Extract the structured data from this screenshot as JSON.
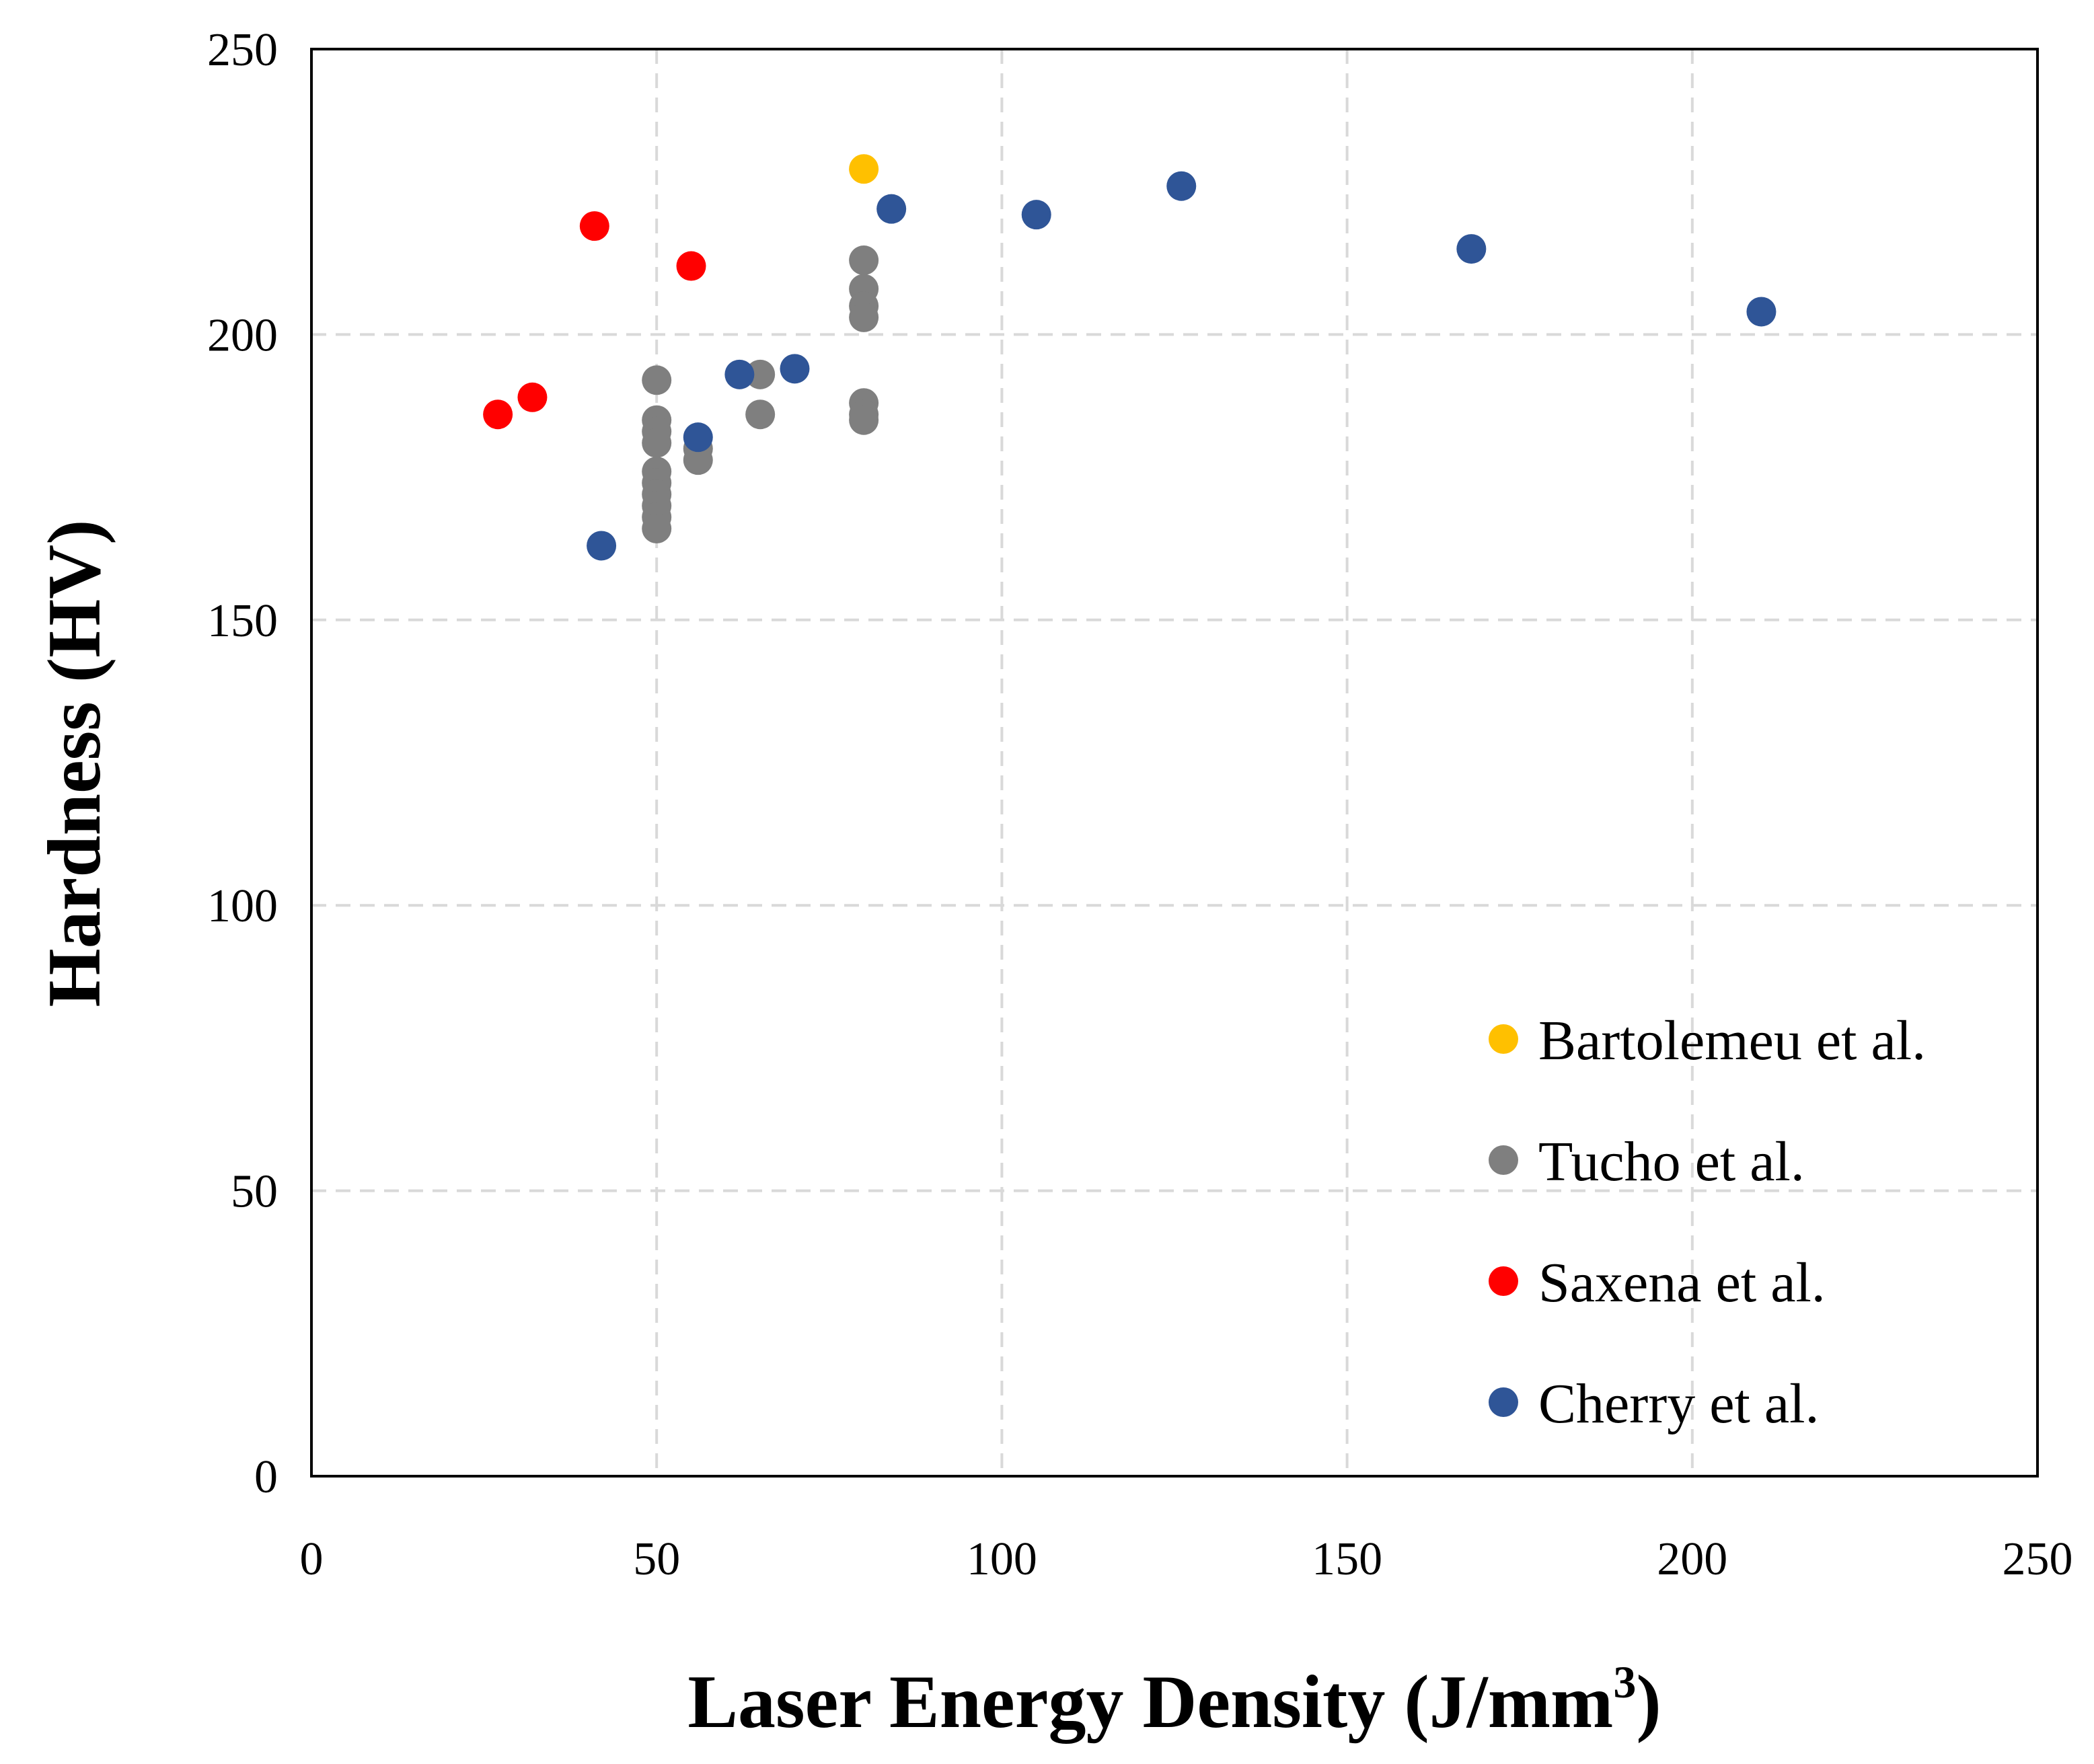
{
  "chart_data": {
    "type": "scatter",
    "title": "",
    "xlabel": "Laser Energy Density (J/mm",
    "xlabel_superscript": "3",
    "xlabel_suffix": ")",
    "ylabel": "Hardness (HV)",
    "xlim": [
      0,
      250
    ],
    "ylim": [
      0,
      250
    ],
    "xticks": [
      "0",
      "50",
      "100",
      "150",
      "200",
      "250"
    ],
    "yticks": [
      "0",
      "50",
      "100",
      "150",
      "200",
      "250"
    ],
    "grid": true,
    "legend_position": "bottom-right",
    "series": [
      {
        "name": "Bartolemeu et al.",
        "color": "#FFC000",
        "points": [
          [
            80,
            229
          ]
        ]
      },
      {
        "name": "Tucho et al.",
        "color": "#7F7F7F",
        "points": [
          [
            50,
            192
          ],
          [
            50,
            185
          ],
          [
            50,
            183
          ],
          [
            50,
            181
          ],
          [
            50,
            176
          ],
          [
            50,
            174
          ],
          [
            50,
            172
          ],
          [
            50,
            170
          ],
          [
            50,
            168
          ],
          [
            50,
            166
          ],
          [
            56,
            180
          ],
          [
            56,
            178
          ],
          [
            65,
            193
          ],
          [
            65,
            186
          ],
          [
            80,
            213
          ],
          [
            80,
            208
          ],
          [
            80,
            205
          ],
          [
            80,
            203
          ],
          [
            80,
            188
          ],
          [
            80,
            186
          ],
          [
            80,
            185
          ]
        ]
      },
      {
        "name": "Saxena et al.",
        "color": "#FF0000",
        "points": [
          [
            27,
            186
          ],
          [
            32,
            189
          ],
          [
            41,
            219
          ],
          [
            55,
            212
          ]
        ]
      },
      {
        "name": "Cherry et al.",
        "color": "#2F5597",
        "points": [
          [
            42,
            163
          ],
          [
            56,
            182
          ],
          [
            62,
            193
          ],
          [
            70,
            194
          ],
          [
            84,
            222
          ],
          [
            105,
            221
          ],
          [
            126,
            226
          ],
          [
            168,
            215
          ],
          [
            210,
            204
          ]
        ]
      }
    ]
  }
}
